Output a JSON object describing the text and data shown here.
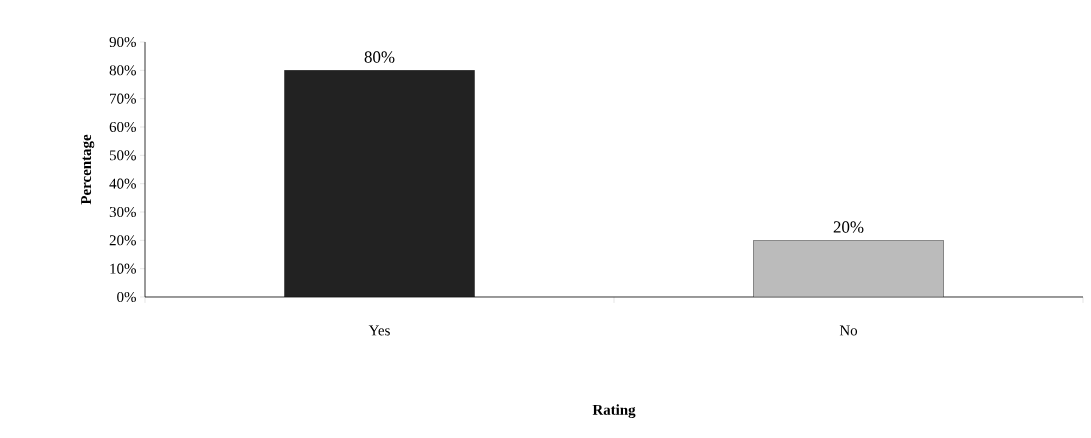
{
  "chart_data": {
    "type": "bar",
    "xlabel": "Rating",
    "ylabel": "Percentage",
    "categories": [
      "Yes",
      "No"
    ],
    "values": [
      80,
      20
    ],
    "colors": [
      "#222222",
      "#bbbbbb"
    ],
    "value_labels": [
      "80%",
      "20%"
    ],
    "ylim": [
      0,
      90
    ],
    "yticks": [
      {
        "value": 0,
        "label": "0%"
      },
      {
        "value": 10,
        "label": "10%"
      },
      {
        "value": 20,
        "label": "20%"
      },
      {
        "value": 30,
        "label": "30%"
      },
      {
        "value": 40,
        "label": "40%"
      },
      {
        "value": 50,
        "label": "50%"
      },
      {
        "value": 60,
        "label": "60%"
      },
      {
        "value": 70,
        "label": "70%"
      },
      {
        "value": 80,
        "label": "80%"
      },
      {
        "value": 90,
        "label": "90%"
      }
    ],
    "marker": "none"
  }
}
